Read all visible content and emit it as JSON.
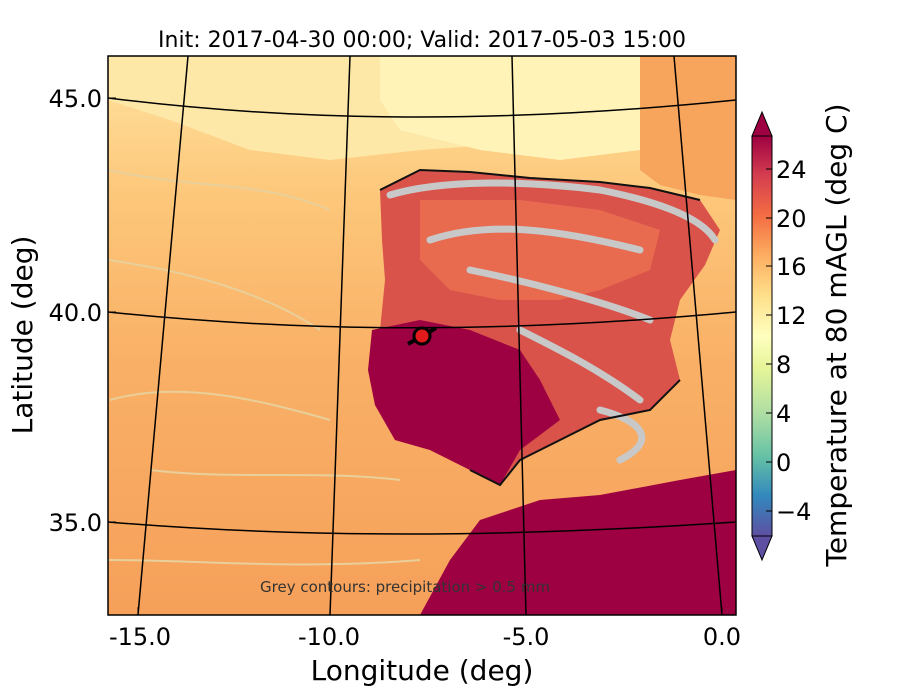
{
  "title": "Init: 2017-04-30 00:00; Valid: 2017-05-03 15:00",
  "axes": {
    "xlabel": "Longitude (deg)",
    "ylabel": "Latitude (deg)",
    "xticks": [
      "-15.0",
      "-10.0",
      "-5.0",
      "0.0"
    ],
    "yticks": [
      "45.0",
      "40.0",
      "35.0"
    ]
  },
  "colorbar": {
    "label": "Temperature at 80 mAGL (deg C)",
    "ticks": [
      "24",
      "20",
      "16",
      "12",
      "8",
      "4",
      "0",
      "−4"
    ],
    "colormap": "Spectral_r",
    "extend": "both"
  },
  "annotation": "Grey contours: precipitation > 0.5 mm",
  "colors": {
    "warm_max": "#9e0142",
    "land_hot": "#d53e4f",
    "land_warm": "#f46d43",
    "sea_warm": "#f8a95c",
    "sea_mild": "#fdbf6f",
    "sea_cool": "#fee090",
    "north": "#ffffbf",
    "precip_contour": "#c8c8c8",
    "marker": "#e31a1c"
  },
  "chart_data": {
    "type": "map",
    "title": "Init: 2017-04-30 00:00; Valid: 2017-05-03 15:00",
    "xlabel": "Longitude (deg)",
    "ylabel": "Latitude (deg)",
    "xlim": [
      -16,
      0
    ],
    "ylim": [
      32.5,
      46
    ],
    "colorbar_range": [
      -6,
      26
    ],
    "colorbar_ticks": [
      -4,
      0,
      4,
      8,
      12,
      16,
      20,
      24
    ]
  }
}
